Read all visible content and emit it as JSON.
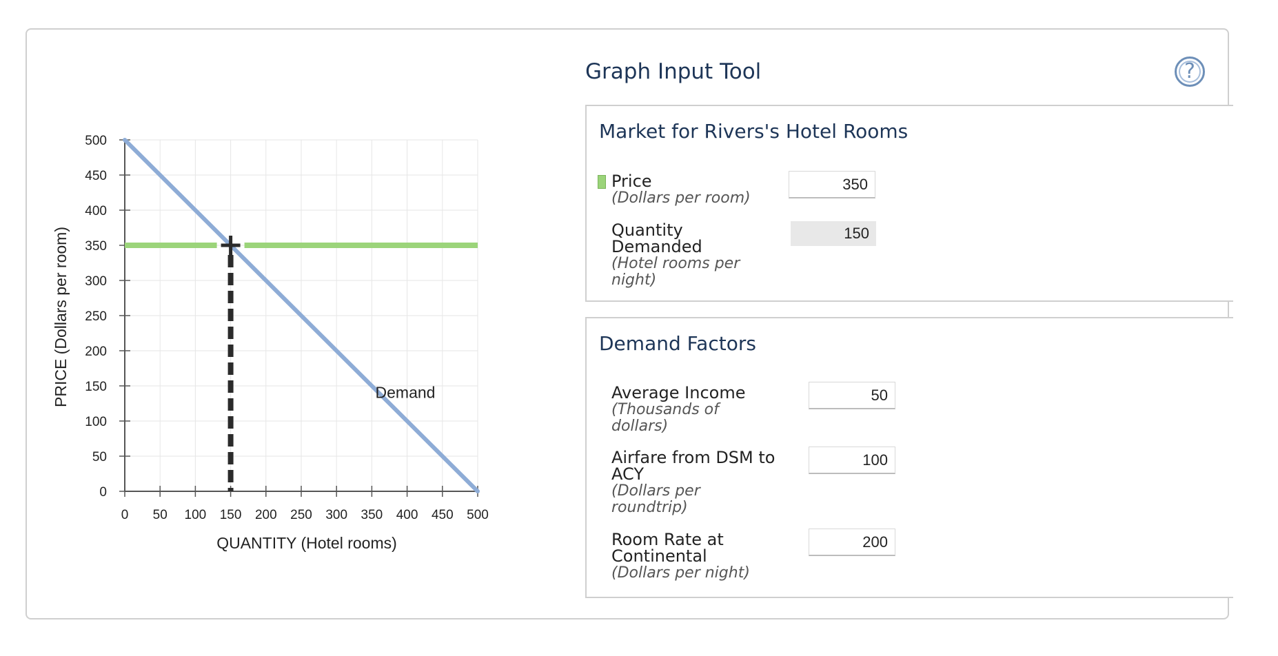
{
  "tool_title": "Graph Input Tool",
  "help_label": "?",
  "market_box": {
    "title": "Market for Rivers's Hotel Rooms",
    "price_label": "Price",
    "price_unit": "(Dollars per room)",
    "price_value": "350",
    "qty_label_1": "Quantity",
    "qty_label_2": "Demanded",
    "qty_unit_1": "(Hotel rooms per",
    "qty_unit_2": "night)",
    "qty_value": "150"
  },
  "factors_box": {
    "title": "Demand Factors",
    "income_label": "Average Income",
    "income_unit_1": "(Thousands of",
    "income_unit_2": "dollars)",
    "income_value": "50",
    "airfare_label_1": "Airfare from DSM to",
    "airfare_label_2": "ACY",
    "airfare_unit_1": "(Dollars per",
    "airfare_unit_2": "roundtrip)",
    "airfare_value": "100",
    "room_label_1": "Room Rate at",
    "room_label_2": "Continental",
    "room_unit": "(Dollars per night)",
    "room_value": "200"
  },
  "colors": {
    "demand": "#8eacd6",
    "price_line": "#9bd47a",
    "dashed": "#2b2b2b",
    "grid": "#e6e6e6",
    "axis": "#555555"
  },
  "chart_data": {
    "type": "line",
    "xlabel": "QUANTITY (Hotel rooms)",
    "ylabel": "PRICE (Dollars per room)",
    "xlim": [
      0,
      500
    ],
    "ylim": [
      0,
      500
    ],
    "xticks": [
      0,
      50,
      100,
      150,
      200,
      250,
      300,
      350,
      400,
      450,
      500
    ],
    "yticks": [
      0,
      50,
      100,
      150,
      200,
      250,
      300,
      350,
      400,
      450,
      500
    ],
    "grid": true,
    "series": [
      {
        "name": "Demand",
        "x": [
          0,
          500
        ],
        "y": [
          500,
          0
        ]
      }
    ],
    "price_line": {
      "y": 350
    },
    "point": {
      "x": 150,
      "y": 350
    },
    "annotations": [
      {
        "text": "Demand",
        "x": 355,
        "y": 133
      }
    ]
  }
}
